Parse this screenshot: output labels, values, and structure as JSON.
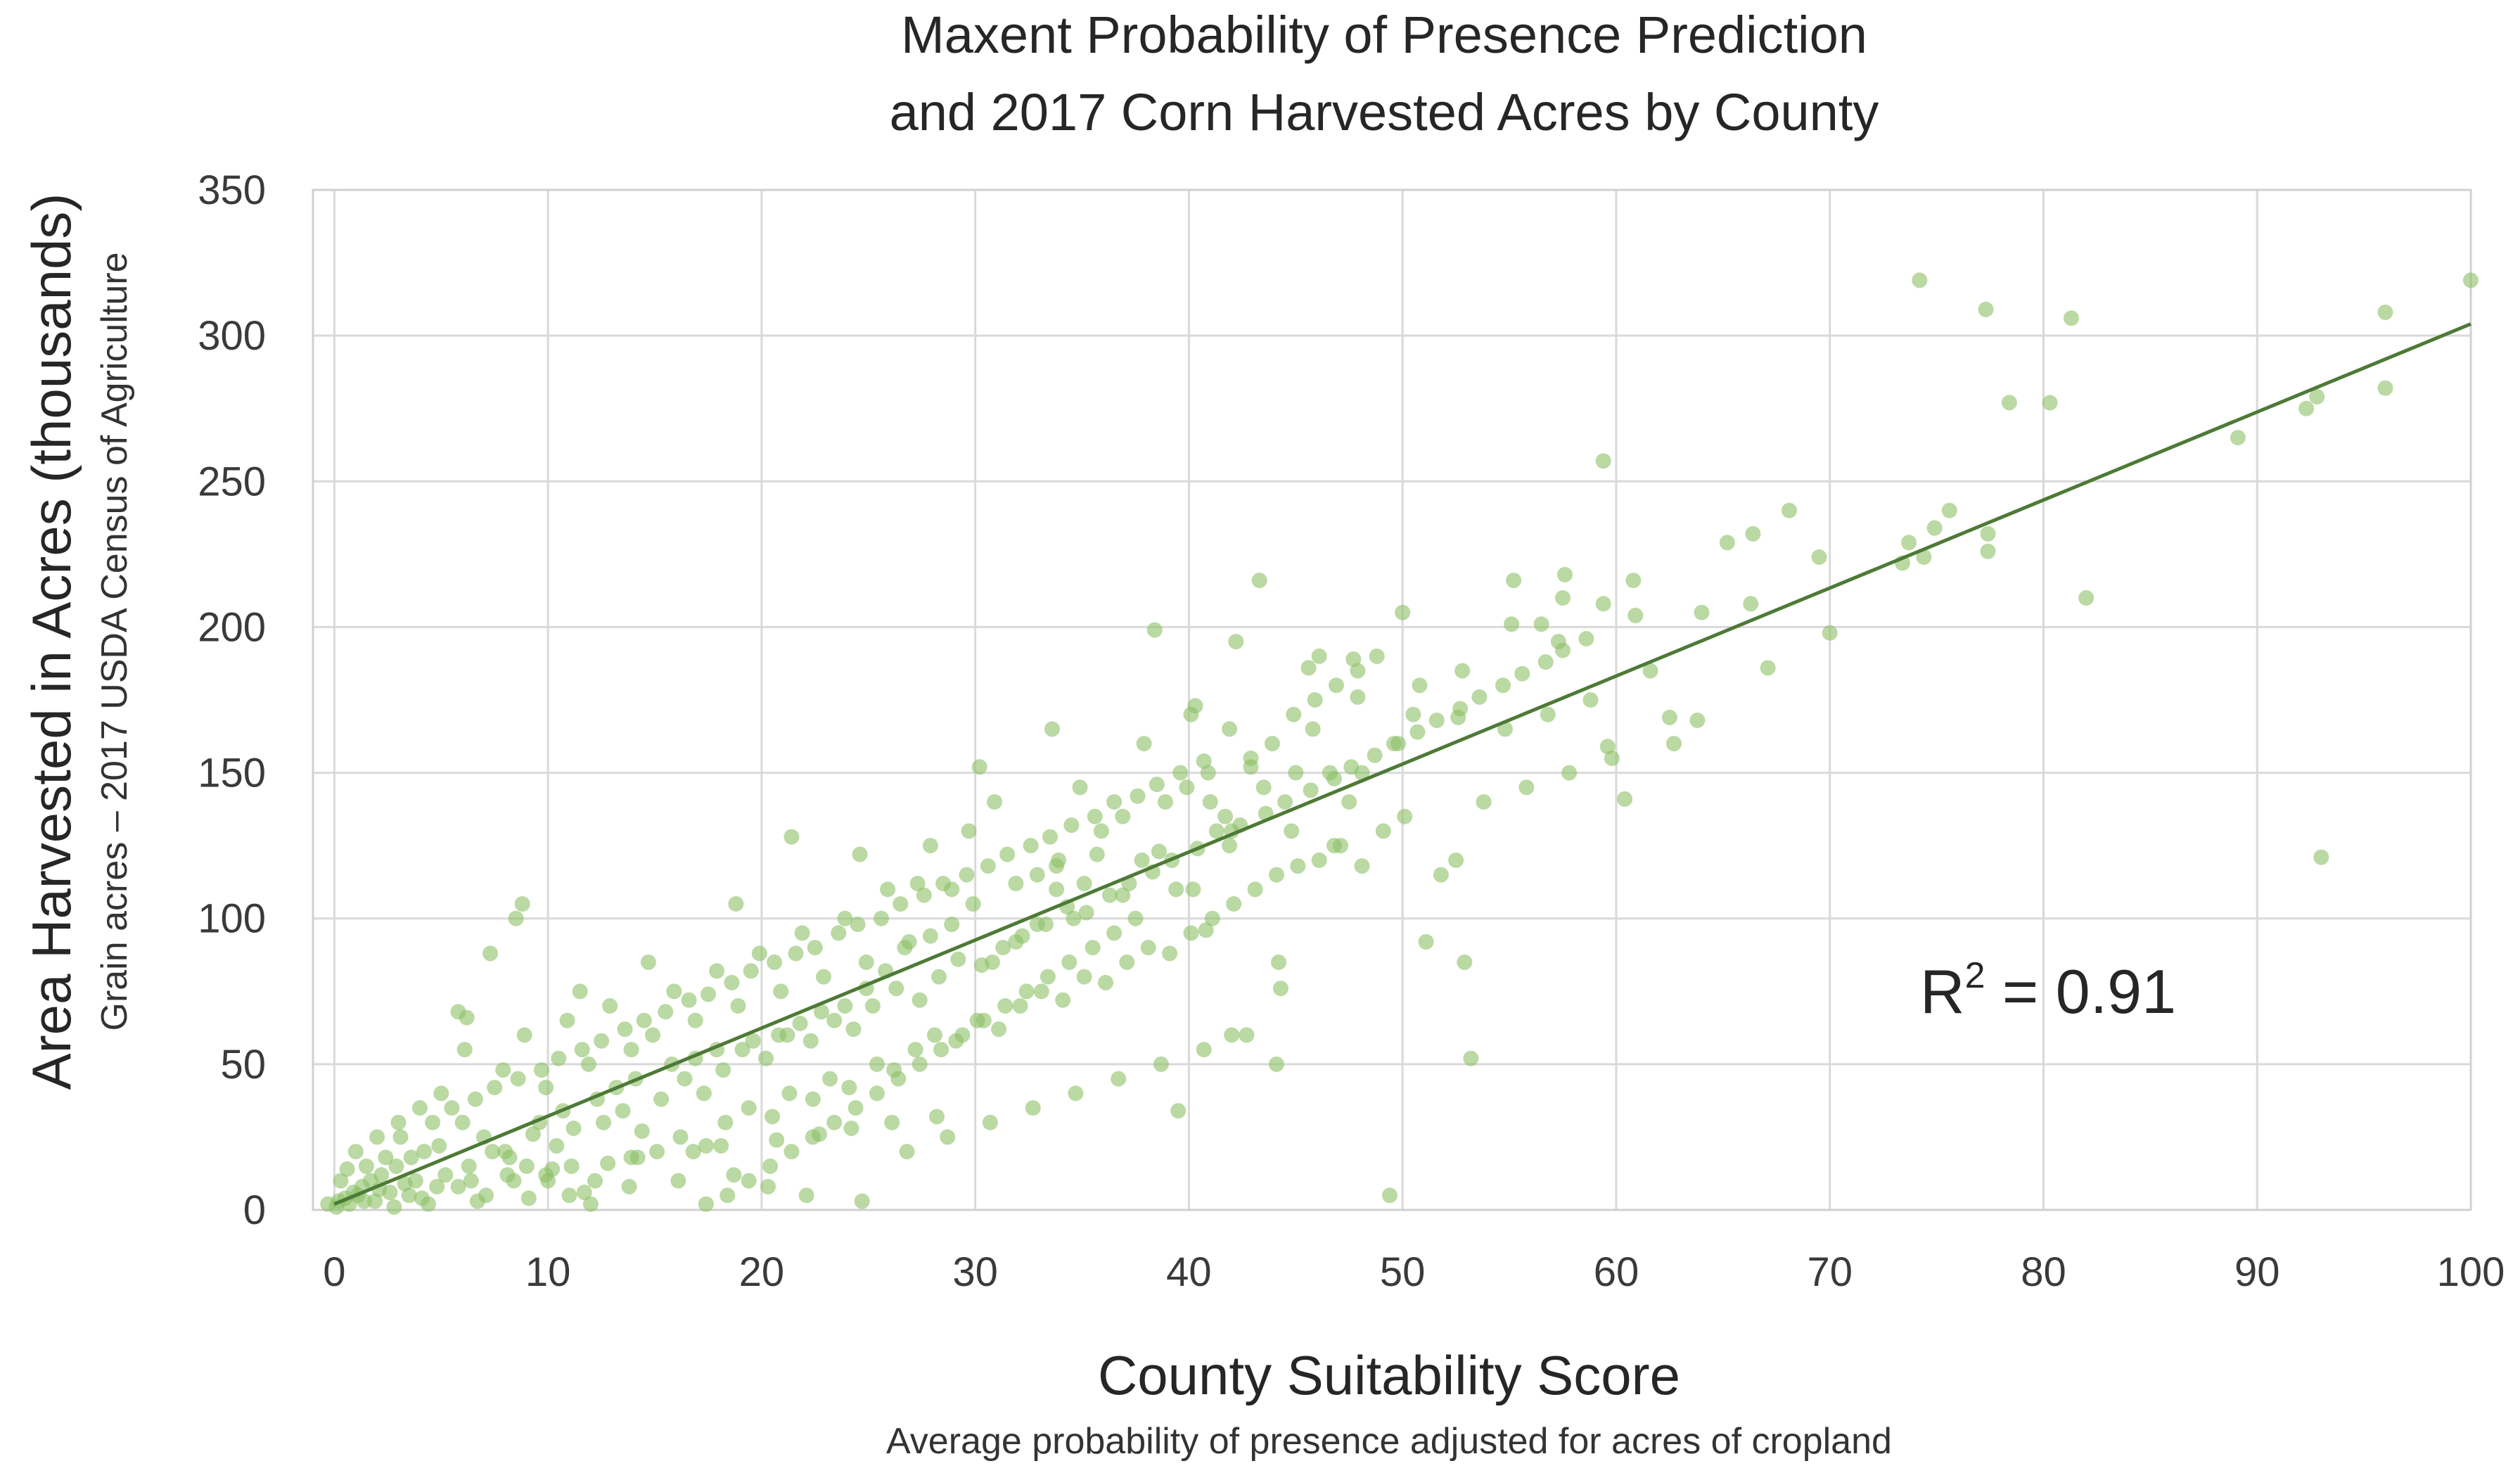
{
  "chart_data": {
    "type": "scatter",
    "title_lines": [
      "Maxent Probability of Presence Prediction",
      "and 2017 Corn Harvested Acres by County"
    ],
    "xlabel": "County Suitability Score",
    "xlabel_sub": "Average probability of presence adjusted for acres of cropland",
    "ylabel": "Area Harvested in Acres (thousands)",
    "ylabel_sub": "Grain acres – 2017 USDA Census of Agriculture",
    "xlim": [
      -1,
      100
    ],
    "ylim": [
      0,
      350
    ],
    "x_ticks": [
      "0",
      "10",
      "20",
      "30",
      "40",
      "50",
      "60",
      "70",
      "80",
      "90",
      "100"
    ],
    "y_ticks": [
      "0",
      "50",
      "100",
      "150",
      "200",
      "250",
      "300",
      "350"
    ],
    "grid": true,
    "point_color": "#8cc065",
    "trend_color": "#4d7a36",
    "trendline": {
      "intercept": 2,
      "slope": 3.02
    },
    "annotation": {
      "base": "R",
      "sup": "2",
      "rest": " = 0.91"
    },
    "points": [
      [
        74.2,
        319
      ],
      [
        77.3,
        309
      ],
      [
        81.3,
        306
      ],
      [
        78.4,
        277
      ],
      [
        80.3,
        277
      ],
      [
        89.1,
        265
      ],
      [
        92.3,
        275
      ],
      [
        92.8,
        279
      ],
      [
        96,
        282
      ],
      [
        96,
        308
      ],
      [
        100,
        319
      ],
      [
        82,
        210
      ],
      [
        93,
        121
      ],
      [
        77.4,
        232
      ],
      [
        77.4,
        226
      ],
      [
        75.6,
        240
      ],
      [
        74.9,
        234
      ],
      [
        73.7,
        229
      ],
      [
        74.4,
        224
      ],
      [
        73.4,
        222
      ],
      [
        59.4,
        257
      ],
      [
        68.1,
        240
      ],
      [
        66.4,
        232
      ],
      [
        65.2,
        229
      ],
      [
        69.5,
        224
      ],
      [
        67.1,
        186
      ],
      [
        70,
        198
      ],
      [
        66.3,
        208
      ],
      [
        64,
        205
      ],
      [
        61.6,
        185
      ],
      [
        62.5,
        169
      ],
      [
        62.7,
        160
      ],
      [
        63.8,
        168
      ],
      [
        60.4,
        141
      ],
      [
        60.8,
        216
      ],
      [
        60.9,
        204
      ],
      [
        59.4,
        208
      ],
      [
        59.6,
        159
      ],
      [
        57.6,
        218
      ],
      [
        55.2,
        216
      ],
      [
        56.5,
        201
      ],
      [
        57.5,
        210
      ],
      [
        55.1,
        201
      ],
      [
        57.3,
        195
      ],
      [
        52.6,
        169
      ],
      [
        50,
        205
      ],
      [
        47.7,
        189
      ],
      [
        46.1,
        190
      ],
      [
        45.6,
        186
      ],
      [
        43.3,
        216
      ],
      [
        42.2,
        195
      ],
      [
        38.4,
        199
      ],
      [
        40.3,
        173
      ],
      [
        40.1,
        170
      ],
      [
        41,
        140
      ],
      [
        42,
        130
      ],
      [
        44.2,
        85
      ],
      [
        44.3,
        76
      ],
      [
        44.1,
        50
      ],
      [
        42,
        60
      ],
      [
        39.5,
        34
      ],
      [
        49.4,
        5
      ],
      [
        52.9,
        85
      ],
      [
        51.1,
        92
      ],
      [
        53.2,
        52
      ],
      [
        52.5,
        120
      ],
      [
        51.8,
        115
      ],
      [
        50.5,
        170
      ],
      [
        49.8,
        160
      ],
      [
        48.1,
        150
      ],
      [
        47.9,
        176
      ],
      [
        47.5,
        140
      ],
      [
        46.6,
        150
      ],
      [
        45.8,
        165
      ],
      [
        45,
        150
      ],
      [
        43.5,
        145
      ],
      [
        42.9,
        152
      ],
      [
        41.7,
        135
      ],
      [
        41.9,
        125
      ],
      [
        40.2,
        110
      ],
      [
        40.8,
        96
      ],
      [
        39.4,
        110
      ],
      [
        38.6,
        123
      ],
      [
        37.8,
        120
      ],
      [
        36.9,
        108
      ],
      [
        35.7,
        122
      ],
      [
        35.1,
        112
      ],
      [
        34.6,
        100
      ],
      [
        33.8,
        110
      ],
      [
        33.6,
        165
      ],
      [
        33.8,
        118
      ],
      [
        32.9,
        98
      ],
      [
        31.9,
        92
      ],
      [
        30.8,
        85
      ],
      [
        30.2,
        152
      ],
      [
        29.7,
        130
      ],
      [
        28.9,
        110
      ],
      [
        27.9,
        94
      ],
      [
        27.3,
        112
      ],
      [
        26.7,
        90
      ],
      [
        25.8,
        82
      ],
      [
        24.9,
        76
      ],
      [
        24.6,
        122
      ],
      [
        23.9,
        70
      ],
      [
        22.8,
        68
      ],
      [
        21.8,
        64
      ],
      [
        21.4,
        128
      ],
      [
        20.8,
        60
      ],
      [
        19.6,
        58
      ],
      [
        18.8,
        105
      ],
      [
        17.9,
        55
      ],
      [
        16.9,
        52
      ],
      [
        15.8,
        50
      ],
      [
        14.7,
        85
      ],
      [
        14.1,
        45
      ],
      [
        13.2,
        42
      ],
      [
        12.3,
        38
      ],
      [
        11.5,
        75
      ],
      [
        10.7,
        34
      ],
      [
        9.6,
        30
      ],
      [
        8.8,
        105
      ],
      [
        8.5,
        100
      ],
      [
        7.3,
        88
      ],
      [
        6.2,
        66
      ],
      [
        5.8,
        68
      ],
      [
        4.9,
        22
      ],
      [
        4.2,
        20
      ],
      [
        3.6,
        18
      ],
      [
        2.9,
        15
      ],
      [
        2.2,
        12
      ],
      [
        1.7,
        10
      ],
      [
        1.3,
        8
      ],
      [
        0.9,
        6
      ],
      [
        0.5,
        4
      ],
      [
        0.2,
        3
      ],
      [
        -0.3,
        2
      ],
      [
        0.1,
        1
      ],
      [
        0.7,
        2
      ],
      [
        1.1,
        5
      ],
      [
        1.9,
        3
      ],
      [
        2.6,
        6
      ],
      [
        3.3,
        9
      ],
      [
        4.1,
        4
      ],
      [
        5.2,
        12
      ],
      [
        6.3,
        15
      ],
      [
        7.4,
        20
      ],
      [
        8.2,
        18
      ],
      [
        9.3,
        26
      ],
      [
        10.4,
        22
      ],
      [
        11.2,
        28
      ],
      [
        12.6,
        30
      ],
      [
        13.5,
        34
      ],
      [
        14.4,
        27
      ],
      [
        15.3,
        38
      ],
      [
        16.4,
        45
      ],
      [
        17.3,
        40
      ],
      [
        18.2,
        48
      ],
      [
        19.1,
        55
      ],
      [
        20.2,
        52
      ],
      [
        21.2,
        60
      ],
      [
        22.3,
        58
      ],
      [
        23.4,
        65
      ],
      [
        24.3,
        62
      ],
      [
        25.2,
        70
      ],
      [
        26.3,
        76
      ],
      [
        27.4,
        72
      ],
      [
        28.3,
        80
      ],
      [
        29.2,
        86
      ],
      [
        30.3,
        84
      ],
      [
        31.3,
        90
      ],
      [
        32.2,
        94
      ],
      [
        33.3,
        98
      ],
      [
        34.3,
        104
      ],
      [
        35.2,
        102
      ],
      [
        36.3,
        108
      ],
      [
        37.2,
        112
      ],
      [
        38.3,
        116
      ],
      [
        39.2,
        120
      ],
      [
        40.4,
        124
      ],
      [
        41.3,
        130
      ],
      [
        42.4,
        132
      ],
      [
        43.6,
        136
      ],
      [
        44.5,
        140
      ],
      [
        45.7,
        144
      ],
      [
        46.8,
        148
      ],
      [
        47.6,
        152
      ],
      [
        48.7,
        156
      ],
      [
        49.6,
        160
      ],
      [
        50.7,
        164
      ],
      [
        51.6,
        168
      ],
      [
        52.7,
        172
      ],
      [
        53.6,
        176
      ],
      [
        54.7,
        180
      ],
      [
        55.6,
        184
      ],
      [
        56.7,
        188
      ],
      [
        57.5,
        192
      ],
      [
        58.6,
        196
      ],
      [
        3.1,
        25
      ],
      [
        4.6,
        30
      ],
      [
        5.5,
        35
      ],
      [
        6.6,
        38
      ],
      [
        7.5,
        42
      ],
      [
        8.6,
        45
      ],
      [
        9.7,
        48
      ],
      [
        10.5,
        52
      ],
      [
        11.6,
        55
      ],
      [
        12.5,
        58
      ],
      [
        13.6,
        62
      ],
      [
        14.5,
        65
      ],
      [
        15.5,
        68
      ],
      [
        16.6,
        72
      ],
      [
        17.5,
        74
      ],
      [
        18.6,
        78
      ],
      [
        19.5,
        82
      ],
      [
        20.6,
        85
      ],
      [
        21.6,
        88
      ],
      [
        22.5,
        90
      ],
      [
        23.6,
        95
      ],
      [
        24.5,
        98
      ],
      [
        25.6,
        100
      ],
      [
        26.5,
        105
      ],
      [
        27.6,
        108
      ],
      [
        28.5,
        112
      ],
      [
        29.6,
        115
      ],
      [
        30.6,
        118
      ],
      [
        31.5,
        122
      ],
      [
        32.6,
        125
      ],
      [
        33.5,
        128
      ],
      [
        34.5,
        132
      ],
      [
        35.6,
        135
      ],
      [
        36.5,
        140
      ],
      [
        37.6,
        142
      ],
      [
        38.5,
        146
      ],
      [
        39.6,
        150
      ],
      [
        40.7,
        154
      ],
      [
        1.5,
        15
      ],
      [
        2.4,
        18
      ],
      [
        3.8,
        10
      ],
      [
        5.8,
        8
      ],
      [
        7.1,
        5
      ],
      [
        8.4,
        10
      ],
      [
        9.9,
        12
      ],
      [
        11.1,
        15
      ],
      [
        12.2,
        10
      ],
      [
        13.9,
        18
      ],
      [
        15.1,
        20
      ],
      [
        16.2,
        25
      ],
      [
        17.4,
        22
      ],
      [
        18.3,
        30
      ],
      [
        19.4,
        35
      ],
      [
        20.5,
        32
      ],
      [
        21.3,
        40
      ],
      [
        22.4,
        38
      ],
      [
        23.2,
        45
      ],
      [
        24.1,
        42
      ],
      [
        25.4,
        50
      ],
      [
        26.2,
        48
      ],
      [
        27.2,
        55
      ],
      [
        28.1,
        60
      ],
      [
        29.1,
        58
      ],
      [
        30.1,
        65
      ],
      [
        31.1,
        62
      ],
      [
        32.1,
        70
      ],
      [
        33.1,
        75
      ],
      [
        34.1,
        72
      ],
      [
        35.1,
        80
      ],
      [
        36.1,
        78
      ],
      [
        37.1,
        85
      ],
      [
        38.1,
        90
      ],
      [
        39.1,
        88
      ],
      [
        40.1,
        95
      ],
      [
        41.1,
        100
      ],
      [
        42.1,
        105
      ],
      [
        43.1,
        110
      ],
      [
        44.1,
        115
      ],
      [
        45.1,
        118
      ],
      [
        46.1,
        120
      ],
      [
        47.1,
        125
      ],
      [
        48.1,
        118
      ],
      [
        49.1,
        130
      ],
      [
        50.1,
        135
      ],
      [
        6.1,
        55
      ],
      [
        7.9,
        48
      ],
      [
        8.9,
        60
      ],
      [
        9.9,
        42
      ],
      [
        10.9,
        65
      ],
      [
        11.9,
        50
      ],
      [
        12.9,
        70
      ],
      [
        13.9,
        55
      ],
      [
        14.9,
        60
      ],
      [
        15.9,
        75
      ],
      [
        16.9,
        65
      ],
      [
        17.9,
        82
      ],
      [
        18.9,
        70
      ],
      [
        19.9,
        88
      ],
      [
        20.9,
        75
      ],
      [
        21.9,
        95
      ],
      [
        22.9,
        80
      ],
      [
        23.9,
        100
      ],
      [
        24.9,
        85
      ],
      [
        25.9,
        110
      ],
      [
        26.9,
        92
      ],
      [
        27.9,
        125
      ],
      [
        28.9,
        98
      ],
      [
        29.9,
        105
      ],
      [
        30.9,
        140
      ],
      [
        31.9,
        112
      ],
      [
        32.9,
        115
      ],
      [
        33.9,
        120
      ],
      [
        34.9,
        145
      ],
      [
        35.9,
        130
      ],
      [
        36.9,
        135
      ],
      [
        37.9,
        160
      ],
      [
        38.9,
        140
      ],
      [
        39.9,
        145
      ],
      [
        40.9,
        150
      ],
      [
        41.9,
        165
      ],
      [
        42.9,
        155
      ],
      [
        43.9,
        160
      ],
      [
        44.9,
        170
      ],
      [
        45.9,
        175
      ],
      [
        46.9,
        180
      ],
      [
        47.9,
        185
      ],
      [
        2.8,
        1
      ],
      [
        4.4,
        2
      ],
      [
        6.7,
        3
      ],
      [
        9.1,
        4
      ],
      [
        11.7,
        6
      ],
      [
        13.8,
        8
      ],
      [
        16.1,
        10
      ],
      [
        18.7,
        12
      ],
      [
        20.3,
        8
      ],
      [
        22.1,
        5
      ],
      [
        24.7,
        3
      ],
      [
        26.8,
        20
      ],
      [
        28.7,
        25
      ],
      [
        30.7,
        30
      ],
      [
        32.7,
        35
      ],
      [
        34.7,
        40
      ],
      [
        36.7,
        45
      ],
      [
        38.7,
        50
      ],
      [
        40.7,
        55
      ],
      [
        42.7,
        60
      ],
      [
        1,
        20
      ],
      [
        2,
        25
      ],
      [
        3,
        30
      ],
      [
        4,
        35
      ],
      [
        5,
        40
      ],
      [
        6,
        30
      ],
      [
        7,
        25
      ],
      [
        8,
        20
      ],
      [
        9,
        15
      ],
      [
        10,
        10
      ],
      [
        11,
        5
      ],
      [
        12,
        2
      ],
      [
        0.3,
        10
      ],
      [
        0.6,
        14
      ],
      [
        1.4,
        3
      ],
      [
        2.1,
        7
      ],
      [
        3.5,
        5
      ],
      [
        4.8,
        8
      ],
      [
        6.4,
        10
      ],
      [
        8.1,
        12
      ],
      [
        10.2,
        14
      ],
      [
        12.8,
        16
      ],
      [
        14.2,
        18
      ],
      [
        16.8,
        20
      ],
      [
        18.1,
        22
      ],
      [
        20.7,
        24
      ],
      [
        22.7,
        26
      ],
      [
        24.2,
        28
      ],
      [
        26.1,
        30
      ],
      [
        28.2,
        32
      ],
      [
        53.8,
        140
      ],
      [
        55.8,
        145
      ],
      [
        57.8,
        150
      ],
      [
        59.8,
        155
      ],
      [
        54.8,
        165
      ],
      [
        56.8,
        170
      ],
      [
        58.8,
        175
      ],
      [
        50.8,
        180
      ],
      [
        52.8,
        185
      ],
      [
        48.8,
        190
      ],
      [
        46.8,
        125
      ],
      [
        44.8,
        130
      ],
      [
        37.5,
        100
      ],
      [
        36.5,
        95
      ],
      [
        35.5,
        90
      ],
      [
        34.4,
        85
      ],
      [
        33.4,
        80
      ],
      [
        32.4,
        75
      ],
      [
        31.4,
        70
      ],
      [
        30.4,
        65
      ],
      [
        29.4,
        60
      ],
      [
        28.4,
        55
      ],
      [
        27.4,
        50
      ],
      [
        26.4,
        45
      ],
      [
        25.4,
        40
      ],
      [
        24.4,
        35
      ],
      [
        23.4,
        30
      ],
      [
        22.4,
        25
      ],
      [
        21.4,
        20
      ],
      [
        20.4,
        15
      ],
      [
        19.4,
        10
      ],
      [
        18.4,
        5
      ],
      [
        17.4,
        2
      ]
    ]
  }
}
